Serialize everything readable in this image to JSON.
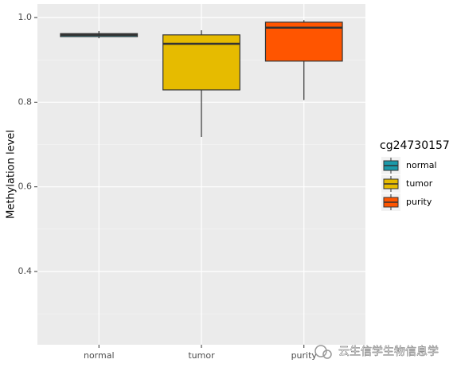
{
  "chart_data": {
    "type": "boxplot",
    "y_label": "Methylation level",
    "legend_title": "cg24730157",
    "legend_position": "right",
    "categories": [
      "normal",
      "tumor",
      "purity"
    ],
    "series": [
      {
        "name": "normal",
        "color": "#1b9aaa",
        "values": [
          0.951,
          0.955,
          0.959,
          0.962,
          0.968
        ]
      },
      {
        "name": "tumor",
        "color": "#e6bb00",
        "values": [
          0.718,
          0.829,
          0.938,
          0.959,
          0.97
        ]
      },
      {
        "name": "purity",
        "color": "#ff5500",
        "values": [
          0.805,
          0.897,
          0.976,
          0.989,
          0.994
        ]
      }
    ],
    "ylim": [
      0.227,
      1.032
    ],
    "yticks": [
      {
        "value": 0.4,
        "label": "0.4"
      },
      {
        "value": 0.6,
        "label": "0.6"
      },
      {
        "value": 0.8,
        "label": "0.8"
      },
      {
        "value": 1.0,
        "label": "1.0"
      }
    ],
    "minor_yticks": [
      0.3,
      0.5,
      0.7,
      0.9
    ],
    "grid": true
  },
  "watermark": "云生信学生物信息学"
}
